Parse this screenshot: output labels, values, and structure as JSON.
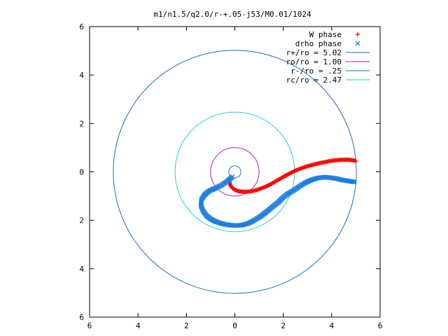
{
  "chart_data": {
    "type": "scatter",
    "title": "m1/n1.5/q2.0/r-+.05-j53/M0.01/1024",
    "xlabel": "",
    "ylabel": "",
    "xlim": [
      -6,
      6
    ],
    "ylim": [
      -6,
      6
    ],
    "xticks": [
      -6,
      -4,
      -2,
      0,
      2,
      4,
      6
    ],
    "yticks": [
      -6,
      -4,
      -2,
      0,
      2,
      4,
      6
    ],
    "xtick_labels": [
      "6",
      "4",
      "2",
      "0",
      "2",
      "4",
      "6"
    ],
    "ytick_labels": [
      "6",
      "4",
      "2",
      "0",
      "2",
      "4",
      "6"
    ],
    "grid": false,
    "legend_position": "top-right",
    "series": [
      {
        "name": "W phase",
        "kind": "points",
        "marker": "plus",
        "color": "#ff0000",
        "x": [
          -0.23,
          -0.22,
          -0.18,
          -0.1,
          0.0,
          0.15,
          0.3,
          0.5,
          0.7,
          0.9,
          1.1,
          1.3,
          1.5,
          1.7,
          1.9,
          2.1,
          2.3,
          2.5,
          2.7,
          2.9,
          3.1,
          3.3,
          3.5,
          3.7,
          3.9,
          4.1,
          4.3,
          4.5,
          4.65,
          4.8,
          4.92,
          5.0
        ],
        "y": [
          -0.35,
          -0.45,
          -0.57,
          -0.67,
          -0.74,
          -0.8,
          -0.82,
          -0.82,
          -0.8,
          -0.75,
          -0.68,
          -0.6,
          -0.5,
          -0.38,
          -0.27,
          -0.15,
          -0.05,
          0.05,
          0.13,
          0.2,
          0.26,
          0.31,
          0.36,
          0.4,
          0.44,
          0.47,
          0.49,
          0.5,
          0.5,
          0.49,
          0.47,
          0.44
        ]
      },
      {
        "name": "drho phase",
        "kind": "points",
        "marker": "cross",
        "color": "#1e7fe0",
        "x": [
          -0.1,
          -0.3,
          -0.55,
          -0.8,
          -1.05,
          -1.25,
          -1.38,
          -1.4,
          -1.32,
          -1.18,
          -1.0,
          -0.8,
          -0.6,
          -0.4,
          -0.2,
          0.0,
          0.3,
          0.55,
          0.8,
          1.05,
          1.3,
          1.55,
          1.8,
          2.0,
          2.2,
          2.45,
          2.7,
          2.95,
          3.2,
          3.45,
          3.7,
          3.95,
          4.2,
          4.45,
          4.7,
          4.95
        ],
        "y": [
          -0.2,
          -0.38,
          -0.55,
          -0.68,
          -0.78,
          -0.95,
          -1.15,
          -1.4,
          -1.6,
          -1.8,
          -1.95,
          -2.05,
          -2.12,
          -2.17,
          -2.2,
          -2.22,
          -2.2,
          -2.13,
          -2.0,
          -1.85,
          -1.66,
          -1.45,
          -1.25,
          -1.05,
          -0.9,
          -0.75,
          -0.58,
          -0.43,
          -0.32,
          -0.25,
          -0.22,
          -0.24,
          -0.28,
          -0.34,
          -0.38,
          -0.42
        ]
      },
      {
        "name": "r+/ro = 5.02",
        "kind": "circle",
        "radius": 5.02,
        "color": "#1a6ec0"
      },
      {
        "name": "ro/ro = 1.00",
        "kind": "circle",
        "radius": 1.0,
        "color": "#a020c0"
      },
      {
        "name": "r-/ro = .25",
        "kind": "circle",
        "radius": 0.25,
        "color": "#1e6ee6"
      },
      {
        "name": "rc/ro = 2.47",
        "kind": "circle",
        "radius": 2.47,
        "color": "#26d0d8"
      }
    ]
  }
}
